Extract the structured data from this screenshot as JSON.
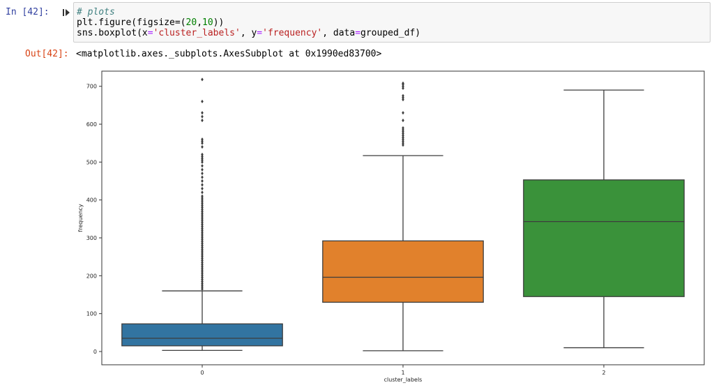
{
  "cell": {
    "in_prompt": "In [42]:",
    "out_prompt": "Out[42]:",
    "code": {
      "comment": "# plots",
      "line2_a": "plt.figure(figsize=(",
      "line2_num1": "20",
      "line2_sep": ",",
      "line2_num2": "10",
      "line2_end": "))",
      "line3_a": "sns.boxplot(x",
      "line3_eq1": "=",
      "line3_str1": "'cluster_labels'",
      "line3_b": ", y",
      "line3_eq2": "=",
      "line3_str2": "'frequency'",
      "line3_c": ", data",
      "line3_eq3": "=",
      "line3_d": "grouped_df)"
    },
    "output_text": "<matplotlib.axes._subplots.AxesSubplot at 0x1990ed83700>"
  },
  "icons": {
    "run": "run-cell-icon"
  },
  "chart_data": {
    "type": "box",
    "xlabel": "cluster_labels",
    "ylabel": "frequency",
    "categories": [
      "0",
      "1",
      "2"
    ],
    "ylim": [
      -35,
      740
    ],
    "yticks": [
      0,
      100,
      200,
      300,
      400,
      500,
      600,
      700
    ],
    "grid": false,
    "boxes": [
      {
        "category": "0",
        "whisker_low": 3,
        "q1": 15,
        "median": 35,
        "q3": 73,
        "whisker_high": 160,
        "color": "#3274a1",
        "outliers": [
          165,
          170,
          175,
          180,
          185,
          190,
          195,
          200,
          205,
          210,
          215,
          220,
          225,
          230,
          235,
          240,
          245,
          250,
          255,
          260,
          265,
          270,
          275,
          280,
          285,
          290,
          295,
          300,
          305,
          310,
          315,
          320,
          325,
          330,
          335,
          340,
          345,
          350,
          355,
          360,
          365,
          370,
          375,
          380,
          385,
          390,
          395,
          400,
          405,
          410,
          420,
          430,
          440,
          450,
          460,
          470,
          480,
          490,
          500,
          505,
          510,
          515,
          520,
          540,
          550,
          555,
          560,
          610,
          620,
          630,
          660,
          718
        ]
      },
      {
        "category": "1",
        "whisker_low": 2,
        "q1": 130,
        "median": 196,
        "q3": 292,
        "whisker_high": 517,
        "color": "#e1812c",
        "outliers": [
          545,
          550,
          555,
          560,
          565,
          570,
          575,
          580,
          585,
          590,
          610,
          630,
          665,
          670,
          675,
          695,
          700,
          705,
          708
        ]
      },
      {
        "category": "2",
        "whisker_low": 10,
        "q1": 145,
        "median": 343,
        "q3": 453,
        "whisker_high": 690,
        "color": "#3a923a",
        "outliers": []
      }
    ]
  }
}
